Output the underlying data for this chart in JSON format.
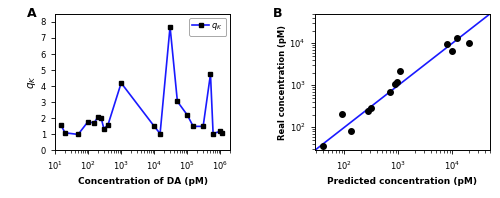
{
  "panel_A": {
    "x": [
      15,
      20,
      50,
      100,
      150,
      200,
      250,
      300,
      400,
      1000,
      10000,
      15000,
      30000,
      50000,
      100000,
      150000,
      300000,
      500000,
      600000,
      1000000,
      1100000
    ],
    "y": [
      1.6,
      1.1,
      1.0,
      1.8,
      1.7,
      2.1,
      2.0,
      1.35,
      1.6,
      4.2,
      1.5,
      1.05,
      7.7,
      3.05,
      2.2,
      1.5,
      1.5,
      4.75,
      1.05,
      1.2,
      1.1
    ],
    "xlabel": "Concentration of DA (pM)",
    "ylabel": "$q_K$",
    "legend_label": "$q_K$",
    "xlim_log": [
      10,
      2000000
    ],
    "ylim": [
      0,
      8.5
    ],
    "yticks": [
      0,
      1,
      2,
      3,
      4,
      5,
      6,
      7,
      8
    ],
    "color": "#1a1aff",
    "marker": "s",
    "markersize": 3.0,
    "linewidth": 1.2,
    "panel_label": "A"
  },
  "panel_B": {
    "scatter_x": [
      40,
      90,
      130,
      270,
      310,
      700,
      850,
      950,
      1050,
      8000,
      12000,
      20000,
      10000
    ],
    "scatter_y": [
      35,
      210,
      80,
      250,
      290,
      680,
      1100,
      1200,
      2200,
      9800,
      13500,
      10000,
      6500
    ],
    "line_x": [
      28,
      50000
    ],
    "line_y": [
      28,
      50000
    ],
    "xlabel": "Predicted concentration (pM)",
    "ylabel": "Real concentration\n(pM)",
    "xlim_log": [
      28,
      50000
    ],
    "ylim_log": [
      28,
      50000
    ],
    "color": "#1a1aff",
    "scatter_color": "black",
    "markersize": 4.0,
    "linewidth": 1.2,
    "panel_label": "B"
  }
}
